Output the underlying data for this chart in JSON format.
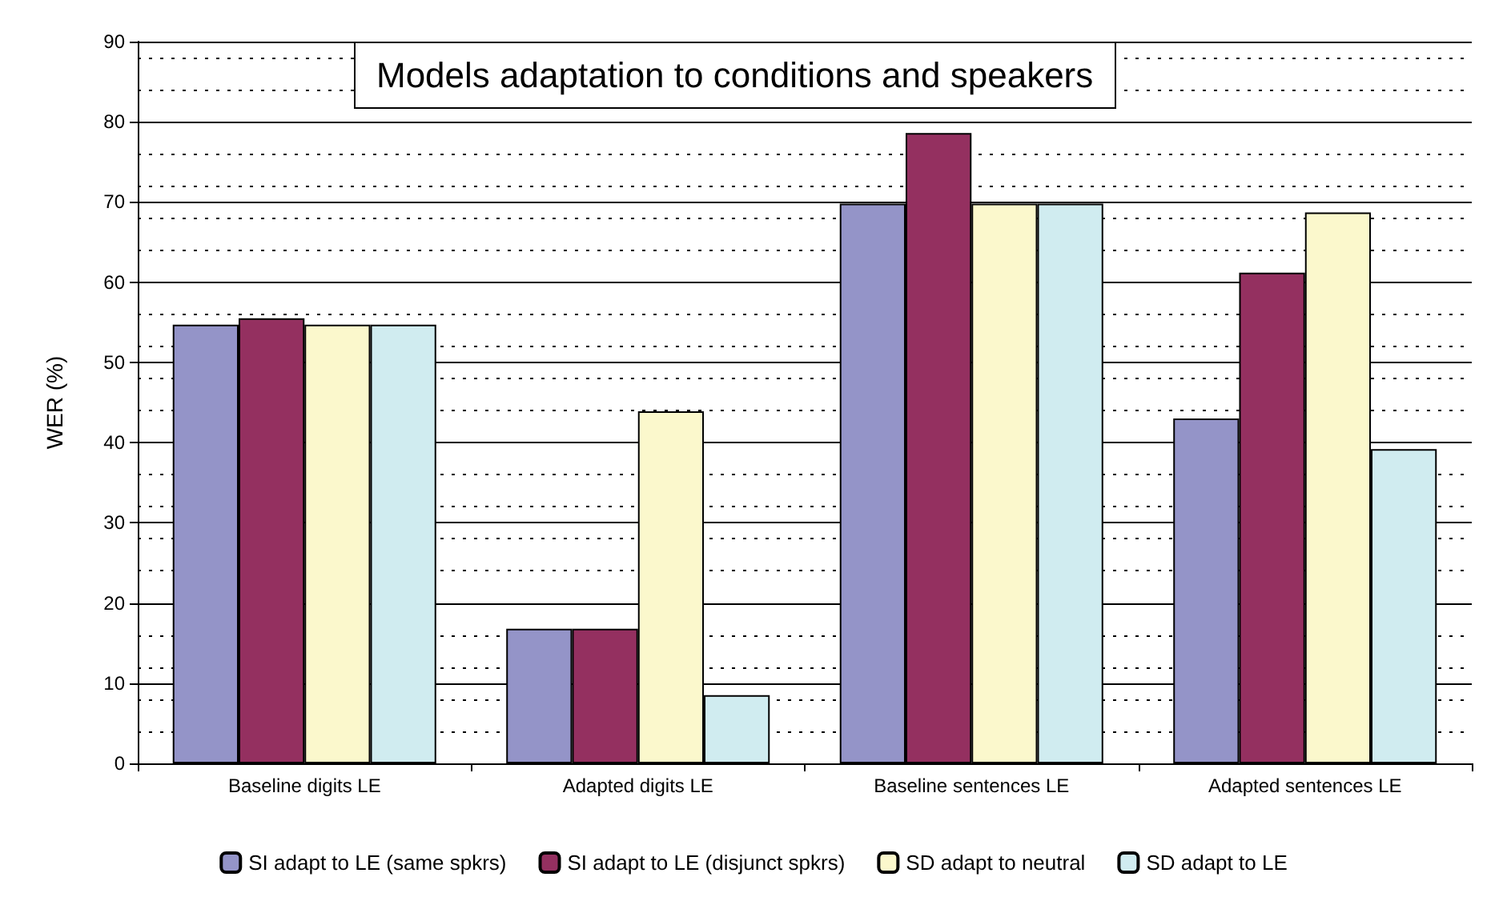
{
  "chart_data": {
    "type": "bar",
    "title": "Models adaptation to conditions and speakers",
    "ylabel": "WER (%)",
    "categories": [
      "Baseline digits LE",
      "Adapted digits LE",
      "Baseline sentences LE",
      "Adapted sentences LE"
    ],
    "series": [
      {
        "name": "SI adapt to LE (same spkrs)",
        "color": "#9494c8",
        "values": [
          54.7,
          16.8,
          69.8,
          43.0
        ]
      },
      {
        "name": "SI adapt to LE (disjunct spkrs)",
        "color": "#943060",
        "values": [
          55.5,
          16.8,
          78.6,
          61.2
        ]
      },
      {
        "name": "SD adapt to neutral",
        "color": "#fbf8cc",
        "values": [
          54.7,
          43.9,
          69.8,
          68.7
        ]
      },
      {
        "name": "SD adapt to LE",
        "color": "#d0ecf0",
        "values": [
          54.7,
          8.5,
          69.8,
          39.2
        ]
      }
    ],
    "ylim": [
      0,
      90
    ],
    "yticks": [
      0,
      10,
      20,
      30,
      40,
      50,
      60,
      70,
      80,
      90
    ],
    "grid": "y",
    "legend": "bottom"
  }
}
